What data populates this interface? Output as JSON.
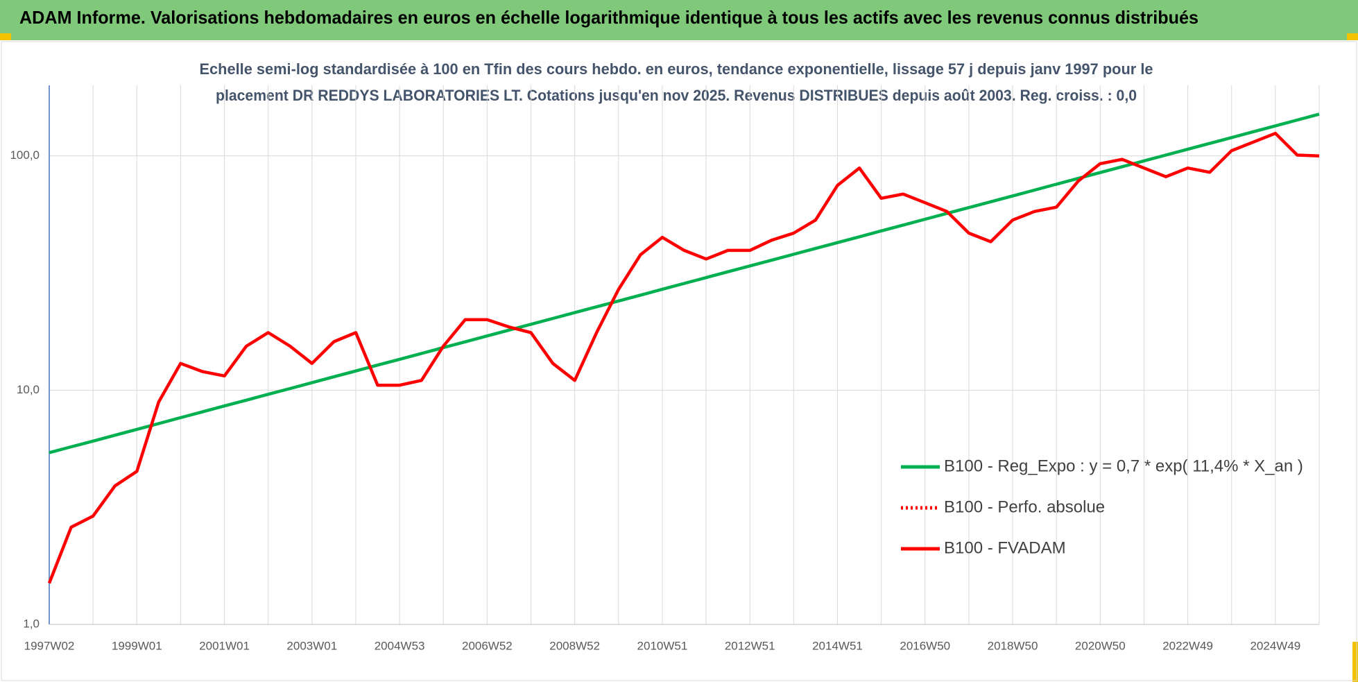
{
  "chart_data": {
    "type": "line",
    "title": "ADAM Informe. Valorisations hebdomadaires en euros en échelle logarithmique identique à tous les actifs avec les revenus connus distribués",
    "subtitle": [
      "Echelle semi-log standardisée à 100 en Tfin des cours hebdo. en euros, tendance exponentielle, lissage 57 j depuis janv 1997 pour le",
      "placement DR REDDYS LABORATORIES LT. Cotations jusqu'en nov 2025. Revenus DISTRIBUES depuis août 2003. Reg. croiss. : 0,0"
    ],
    "categories": [
      "1997W02",
      null,
      null,
      null,
      "1999W01",
      null,
      null,
      null,
      "2001W01",
      null,
      null,
      null,
      "2003W01",
      null,
      null,
      null,
      "2004W53",
      null,
      null,
      null,
      "2006W52",
      null,
      null,
      null,
      "2008W52",
      null,
      null,
      null,
      "2010W51",
      null,
      null,
      null,
      "2012W51",
      null,
      null,
      null,
      "2014W51",
      null,
      null,
      null,
      "2016W50",
      null,
      null,
      null,
      "2018W50",
      null,
      null,
      null,
      "2020W50",
      null,
      null,
      null,
      "2022W49",
      null,
      null,
      null,
      "2024W49",
      null,
      null
    ],
    "log_scale": true,
    "ylim": [
      1,
      200
    ],
    "yticks": [
      {
        "value": 1,
        "label": "1,0"
      },
      {
        "value": 10,
        "label": "10,0"
      },
      {
        "value": 100,
        "label": "100,0"
      }
    ],
    "grid": true,
    "legend": "right",
    "series": [
      {
        "name": "B100 - Reg_Expo : y = 0,7 * exp( 11,4% *  X_an )",
        "color": "#00b050",
        "style": "solid",
        "values": [
          5.41,
          5.73,
          6.06,
          6.42,
          6.8,
          7.2,
          7.63,
          8.08,
          8.56,
          9.06,
          9.6,
          10.16,
          10.76,
          11.4,
          12.07,
          12.79,
          13.54,
          14.34,
          15.19,
          16.08,
          17.03,
          18.04,
          19.1,
          20.23,
          21.42,
          22.69,
          24.03,
          25.44,
          26.95,
          28.54,
          30.22,
          32.0,
          33.89,
          35.89,
          38.01,
          40.26,
          42.64,
          45.15,
          47.82,
          50.64,
          53.63,
          56.79,
          60.14,
          63.69,
          67.45,
          71.45,
          75.67,
          80.13,
          84.86,
          89.87,
          95.17,
          100.8,
          106.7,
          113.0,
          119.7,
          126.8,
          134.3,
          142.2,
          150.6
        ]
      },
      {
        "name": "B100 - Perfo. absolue",
        "color": "#ff0000",
        "style": "dotted",
        "values": [
          1.5,
          2.6,
          2.9,
          3.9,
          4.5,
          8.9,
          13.0,
          12.0,
          11.5,
          15.4,
          17.6,
          15.4,
          13.0,
          16.1,
          17.6,
          10.5,
          10.5,
          11.0,
          15.4,
          20,
          20,
          18.6,
          17.6,
          13.0,
          11.0,
          17.6,
          26.9,
          37.8,
          44.9,
          39.5,
          36.3,
          39.5,
          39.5,
          43.7,
          46.8,
          53.2,
          74.8,
          88.7,
          65.9,
          68.7,
          63.1,
          57.9,
          46.8,
          43.0,
          53.2,
          57.9,
          60.4,
          78.1,
          92.6,
          96.6,
          88.7,
          81.5,
          88.7,
          85.1,
          105.2,
          114.6,
          124.8,
          100.8,
          100
        ]
      },
      {
        "name": "B100 - FVADAM",
        "color": "#ff0000",
        "style": "solid",
        "values": [
          1.5,
          2.6,
          2.9,
          3.9,
          4.5,
          8.9,
          13.0,
          12.0,
          11.5,
          15.4,
          17.6,
          15.4,
          13.0,
          16.1,
          17.6,
          10.5,
          10.5,
          11.0,
          15.4,
          20,
          20,
          18.6,
          17.6,
          13.0,
          11.0,
          17.6,
          26.9,
          37.8,
          44.9,
          39.5,
          36.3,
          39.5,
          39.5,
          43.7,
          46.8,
          53.2,
          74.8,
          88.7,
          65.9,
          68.7,
          63.1,
          57.9,
          46.8,
          43.0,
          53.2,
          57.9,
          60.4,
          78.1,
          92.6,
          96.6,
          88.7,
          81.5,
          88.7,
          85.1,
          105.2,
          114.6,
          124.8,
          100.8,
          100
        ]
      }
    ]
  }
}
